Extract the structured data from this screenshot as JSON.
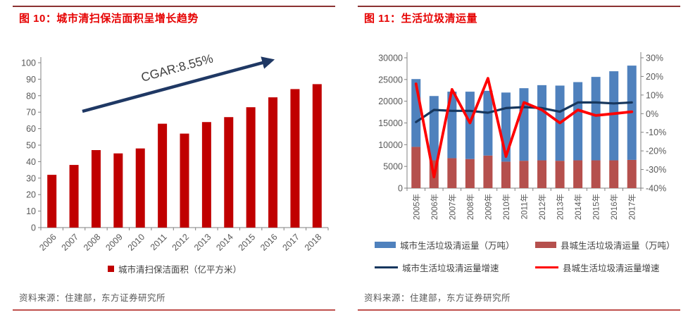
{
  "colors": {
    "title_red": "#e60000",
    "top_rule": "#8b3232",
    "bottom_rule": "#c0504d",
    "bar_red": "#c00000",
    "bar_blue": "#4f81bd",
    "bar_brick": "#b5504d",
    "line_navy": "#17375e",
    "line_red": "#ff0000",
    "axis_gray": "#808080",
    "tick_text": "#595959",
    "annotation_text": "#3f3f3f"
  },
  "figures": [
    {
      "id": "figure10",
      "title": "图 10：城市清扫保洁面积呈增长趋势",
      "source": "资料来源：住建部，东方证券研究所",
      "legend": [
        {
          "label": "城市清扫保洁面积（亿平方米）",
          "swatch": "square",
          "color": "#c00000"
        }
      ]
    },
    {
      "id": "figure11",
      "title": "图 11：生活垃圾清运量",
      "source": "资料来源：住建部，东方证券研究所",
      "legend": [
        {
          "label": "城市生活垃圾清运量（万吨）",
          "swatch": "bar",
          "color": "#4f81bd"
        },
        {
          "label": "县城生活垃圾清运量（万吨）",
          "swatch": "bar",
          "color": "#b5504d"
        },
        {
          "label": "城市生活垃圾清运量增速",
          "swatch": "line",
          "color": "#17375e"
        },
        {
          "label": "县城生活垃圾清运量增速",
          "swatch": "line",
          "color": "#ff0000"
        }
      ]
    }
  ],
  "chart_data": [
    {
      "type": "bar",
      "title": "图 10：城市清扫保洁面积呈增长趋势",
      "categories": [
        "2006",
        "2007",
        "2008",
        "2009",
        "2010",
        "2011",
        "2012",
        "2013",
        "2014",
        "2015",
        "2016",
        "2017",
        "2018"
      ],
      "values": [
        32,
        38,
        47,
        45,
        48,
        63,
        57,
        64,
        67,
        73,
        79,
        84,
        87
      ],
      "series_name": "城市清扫保洁面积（亿平方米）",
      "bar_color": "#c00000",
      "ylim": [
        0,
        100
      ],
      "ytick_step": 10,
      "grid": false,
      "annotation": "CGAR:8.55%",
      "annotation_kind": "trend-arrow-up",
      "legend_position": "bottom"
    },
    {
      "type": "combo-stacked-bar-line",
      "title": "图 11：生活垃圾清运量",
      "categories": [
        "2005年",
        "2006年",
        "2007年",
        "2008年",
        "2009年",
        "2010年",
        "2011年",
        "2012年",
        "2013年",
        "2014年",
        "2015年",
        "2016年",
        "2017年"
      ],
      "series": [
        {
          "name": "城市生活垃圾清运量（万吨）",
          "type": "bar",
          "stack": "top",
          "axis": "left",
          "color": "#4f81bd",
          "values": [
            15600,
            14800,
            15300,
            15500,
            14900,
            15900,
            16700,
            17300,
            17300,
            18000,
            19200,
            20500,
            21700
          ]
        },
        {
          "name": "县城生活垃圾清运量（万吨）",
          "type": "bar",
          "stack": "bottom",
          "axis": "left",
          "color": "#b5504d",
          "values": [
            9500,
            6400,
            6900,
            6700,
            7500,
            6100,
            6300,
            6400,
            6300,
            6400,
            6400,
            6400,
            6500
          ]
        },
        {
          "name": "城市生活垃圾清运量增速",
          "type": "line",
          "axis": "right",
          "color": "#17375e",
          "values": [
            -4.5,
            2,
            1.5,
            1.5,
            0.5,
            3,
            3.5,
            3,
            1,
            6,
            6,
            5.5,
            6
          ]
        },
        {
          "name": "县城生活垃圾清运量增速",
          "type": "line",
          "axis": "right",
          "color": "#ff0000",
          "values": [
            16,
            -34,
            13,
            -5,
            19,
            -23,
            6,
            2,
            -5,
            2,
            -1,
            0,
            1
          ]
        }
      ],
      "left_axis": {
        "min": 0,
        "max": 30000,
        "step": 5000
      },
      "right_axis": {
        "min": -40,
        "max": 30,
        "step": 10,
        "unit": "%"
      },
      "grid": false,
      "legend_position": "bottom"
    }
  ]
}
